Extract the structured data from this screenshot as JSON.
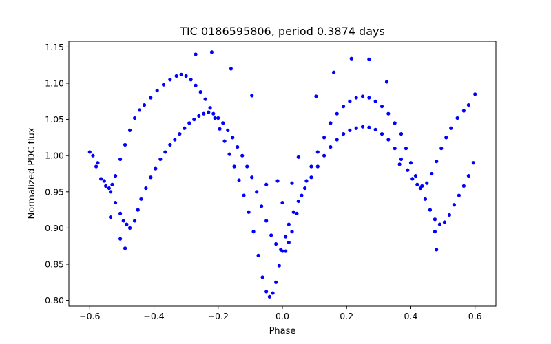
{
  "chart_data": {
    "type": "scatter",
    "title": "TIC 0186595806, period 0.3874 days",
    "xlabel": "Phase",
    "ylabel": "Normalized PDC flux",
    "xlim": [
      -0.665,
      0.665
    ],
    "ylim": [
      0.792,
      1.158
    ],
    "xticks": [
      -0.6,
      -0.4,
      -0.2,
      0.0,
      0.2,
      0.4,
      0.6
    ],
    "xtick_labels": [
      "−0.6",
      "−0.4",
      "−0.2",
      "0.0",
      "0.2",
      "0.4",
      "0.6"
    ],
    "yticks": [
      0.8,
      0.85,
      0.9,
      0.95,
      1.0,
      1.05,
      1.1,
      1.15
    ],
    "ytick_labels": [
      "0.80",
      "0.85",
      "0.90",
      "0.95",
      "1.00",
      "1.05",
      "1.10",
      "1.15"
    ],
    "grid": false,
    "marker_color": "#0000ff",
    "series": [
      {
        "color": "#0000ff",
        "points": [
          [
            -0.6,
            1.005
          ],
          [
            -0.58,
            0.985
          ],
          [
            -0.565,
            0.968
          ],
          [
            -0.55,
            0.958
          ],
          [
            -0.54,
            0.955
          ],
          [
            -0.53,
            0.96
          ],
          [
            -0.52,
            0.972
          ],
          [
            -0.505,
            0.995
          ],
          [
            -0.49,
            1.015
          ],
          [
            -0.475,
            1.035
          ],
          [
            -0.46,
            1.052
          ],
          [
            -0.445,
            1.063
          ],
          [
            -0.43,
            1.07
          ],
          [
            -0.41,
            1.08
          ],
          [
            -0.39,
            1.09
          ],
          [
            -0.37,
            1.098
          ],
          [
            -0.35,
            1.105
          ],
          [
            -0.33,
            1.11
          ],
          [
            -0.315,
            1.112
          ],
          [
            -0.3,
            1.11
          ],
          [
            -0.285,
            1.105
          ],
          [
            -0.27,
            1.097
          ],
          [
            -0.255,
            1.088
          ],
          [
            -0.24,
            1.078
          ],
          [
            -0.225,
            1.066
          ],
          [
            -0.21,
            1.052
          ],
          [
            -0.195,
            1.037
          ],
          [
            -0.18,
            1.02
          ],
          [
            -0.165,
            1.002
          ],
          [
            -0.15,
            0.985
          ],
          [
            -0.135,
            0.966
          ],
          [
            -0.12,
            0.945
          ],
          [
            -0.105,
            0.922
          ],
          [
            -0.09,
            0.895
          ],
          [
            -0.075,
            0.862
          ],
          [
            -0.062,
            0.832
          ],
          [
            -0.05,
            0.812
          ],
          [
            -0.04,
            0.805
          ],
          [
            -0.03,
            0.81
          ],
          [
            -0.02,
            0.825
          ],
          [
            -0.01,
            0.848
          ],
          [
            0.0,
            0.868
          ],
          [
            0.01,
            0.888
          ],
          [
            0.02,
            0.905
          ],
          [
            0.035,
            0.922
          ],
          [
            0.05,
            0.937
          ],
          [
            0.07,
            0.955
          ],
          [
            0.09,
            0.97
          ],
          [
            0.11,
            0.985
          ],
          [
            0.13,
            1.0
          ],
          [
            0.15,
            1.012
          ],
          [
            0.17,
            1.022
          ],
          [
            0.19,
            1.03
          ],
          [
            0.21,
            1.035
          ],
          [
            0.23,
            1.038
          ],
          [
            0.25,
            1.04
          ],
          [
            0.27,
            1.039
          ],
          [
            0.29,
            1.036
          ],
          [
            0.31,
            1.03
          ],
          [
            0.33,
            1.022
          ],
          [
            0.35,
            1.01
          ],
          [
            0.37,
            0.995
          ],
          [
            0.39,
            0.98
          ],
          [
            0.405,
            0.968
          ],
          [
            0.42,
            0.96
          ],
          [
            0.435,
            0.958
          ],
          [
            0.45,
            0.962
          ],
          [
            0.465,
            0.975
          ],
          [
            0.48,
            0.992
          ],
          [
            0.495,
            1.01
          ],
          [
            0.51,
            1.025
          ],
          [
            0.525,
            1.038
          ],
          [
            0.545,
            1.052
          ],
          [
            0.565,
            1.062
          ],
          [
            0.58,
            1.07
          ],
          [
            0.6,
            1.085
          ],
          [
            -0.59,
            1.0
          ],
          [
            -0.575,
            0.99
          ],
          [
            -0.555,
            0.965
          ],
          [
            -0.535,
            0.95
          ],
          [
            -0.52,
            0.935
          ],
          [
            -0.505,
            0.92
          ],
          [
            -0.495,
            0.91
          ],
          [
            -0.485,
            0.905
          ],
          [
            -0.475,
            0.9
          ],
          [
            -0.46,
            0.91
          ],
          [
            -0.45,
            0.925
          ],
          [
            -0.44,
            0.94
          ],
          [
            -0.425,
            0.955
          ],
          [
            -0.41,
            0.97
          ],
          [
            -0.395,
            0.982
          ],
          [
            -0.38,
            0.995
          ],
          [
            -0.365,
            1.005
          ],
          [
            -0.35,
            1.015
          ],
          [
            -0.335,
            1.022
          ],
          [
            -0.32,
            1.03
          ],
          [
            -0.305,
            1.038
          ],
          [
            -0.29,
            1.045
          ],
          [
            -0.275,
            1.05
          ],
          [
            -0.26,
            1.055
          ],
          [
            -0.245,
            1.058
          ],
          [
            -0.23,
            1.06
          ],
          [
            -0.215,
            1.058
          ],
          [
            -0.2,
            1.052
          ],
          [
            -0.185,
            1.045
          ],
          [
            -0.17,
            1.035
          ],
          [
            -0.155,
            1.025
          ],
          [
            -0.14,
            1.012
          ],
          [
            -0.125,
            1.0
          ],
          [
            -0.11,
            0.985
          ],
          [
            -0.095,
            0.97
          ],
          [
            -0.08,
            0.95
          ],
          [
            -0.065,
            0.93
          ],
          [
            -0.05,
            0.91
          ],
          [
            -0.035,
            0.89
          ],
          [
            -0.02,
            0.878
          ],
          [
            -0.005,
            0.87
          ],
          [
            0.01,
            0.868
          ],
          [
            0.02,
            0.88
          ],
          [
            0.03,
            0.895
          ],
          [
            0.045,
            0.92
          ],
          [
            0.06,
            0.945
          ],
          [
            0.075,
            0.965
          ],
          [
            0.09,
            0.985
          ],
          [
            0.11,
            1.005
          ],
          [
            0.13,
            1.025
          ],
          [
            0.15,
            1.045
          ],
          [
            0.17,
            1.058
          ],
          [
            0.19,
            1.068
          ],
          [
            0.21,
            1.075
          ],
          [
            0.23,
            1.08
          ],
          [
            0.25,
            1.082
          ],
          [
            0.27,
            1.08
          ],
          [
            0.29,
            1.075
          ],
          [
            0.31,
            1.068
          ],
          [
            0.33,
            1.058
          ],
          [
            0.35,
            1.045
          ],
          [
            0.37,
            1.03
          ],
          [
            0.385,
            1.01
          ],
          [
            0.4,
            0.99
          ],
          [
            0.415,
            0.972
          ],
          [
            0.43,
            0.955
          ],
          [
            0.445,
            0.94
          ],
          [
            0.46,
            0.925
          ],
          [
            0.475,
            0.912
          ],
          [
            0.49,
            0.905
          ],
          [
            0.505,
            0.908
          ],
          [
            0.52,
            0.918
          ],
          [
            0.535,
            0.932
          ],
          [
            0.55,
            0.945
          ],
          [
            0.565,
            0.958
          ],
          [
            0.58,
            0.972
          ],
          [
            0.595,
            0.99
          ],
          [
            -0.27,
            1.14
          ],
          [
            -0.22,
            1.143
          ],
          [
            -0.16,
            1.12
          ],
          [
            -0.095,
            1.083
          ],
          [
            -0.05,
            0.96
          ],
          [
            0.0,
            0.935
          ],
          [
            0.05,
            0.998
          ],
          [
            0.105,
            1.082
          ],
          [
            0.16,
            1.115
          ],
          [
            0.215,
            1.134
          ],
          [
            0.27,
            1.133
          ],
          [
            0.325,
            1.102
          ],
          [
            0.365,
            0.988
          ],
          [
            0.475,
            0.895
          ],
          [
            0.48,
            0.87
          ],
          [
            -0.505,
            0.885
          ],
          [
            -0.49,
            0.872
          ],
          [
            -0.535,
            0.915
          ],
          [
            -0.015,
            0.965
          ],
          [
            0.03,
            0.962
          ]
        ]
      }
    ]
  }
}
